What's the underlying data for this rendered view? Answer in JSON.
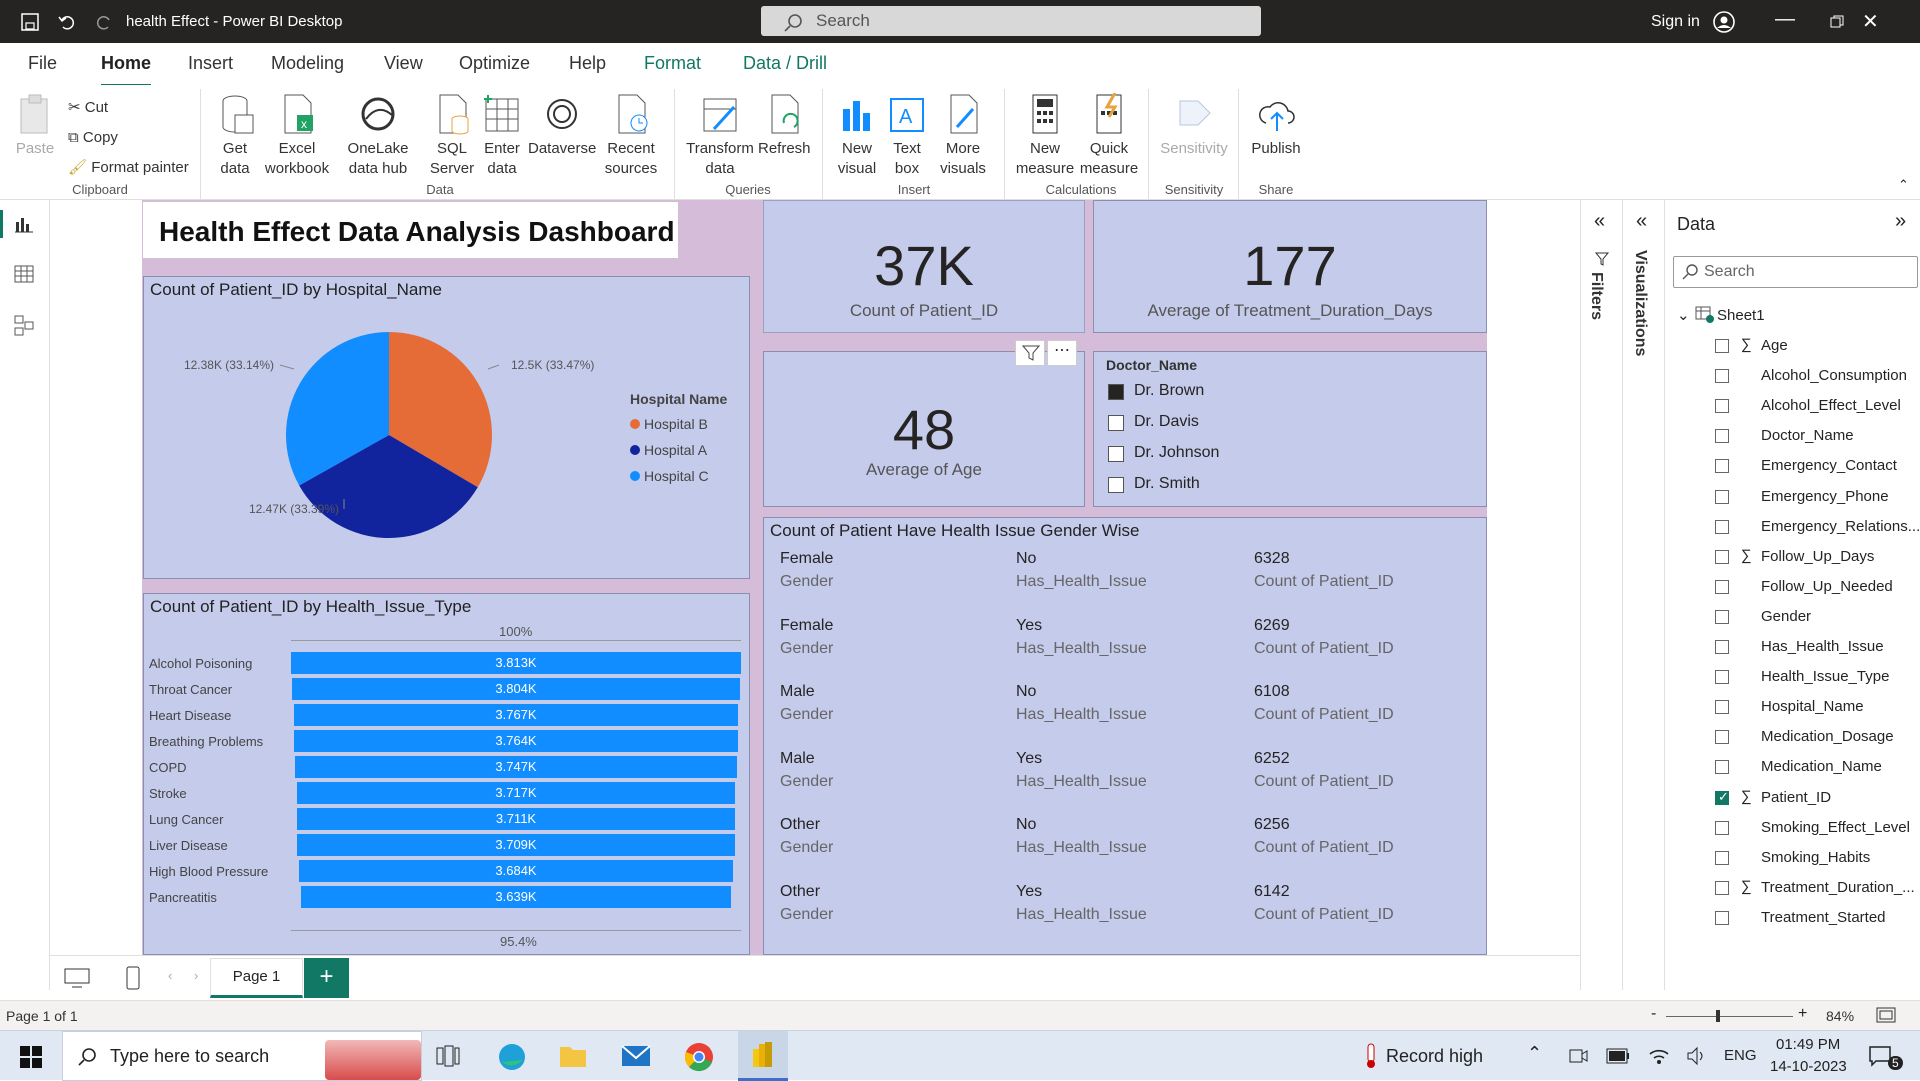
{
  "app": {
    "title": "health Effect - Power BI Desktop",
    "search_placeholder": "Search",
    "sign_in": "Sign in"
  },
  "menu": [
    "File",
    "Home",
    "Insert",
    "Modeling",
    "View",
    "Optimize",
    "Help",
    "Format",
    "Data / Drill"
  ],
  "ribbon": {
    "clipboard": {
      "paste": "Paste",
      "cut": "Cut",
      "copy": "Copy",
      "format_painter": "Format painter",
      "group": "Clipboard"
    },
    "data": {
      "get_data": "Get data",
      "excel": "Excel workbook",
      "onelake": "OneLake data hub",
      "sql": "SQL Server",
      "enter": "Enter data",
      "dataverse": "Dataverse",
      "recent": "Recent sources",
      "group": "Data"
    },
    "queries": {
      "transform": "Transform data",
      "refresh": "Refresh",
      "group": "Queries"
    },
    "insert": {
      "new_visual": "New visual",
      "text_box": "Text box",
      "more_visuals": "More visuals",
      "group": "Insert"
    },
    "calculations": {
      "new_measure": "New measure",
      "quick_measure": "Quick measure",
      "group": "Calculations"
    },
    "sensitivity": {
      "label": "Sensitivity",
      "group": "Sensitivity"
    },
    "share": {
      "publish": "Publish",
      "group": "Share"
    }
  },
  "report": {
    "title": "Health Effect Data Analysis Dashboard",
    "pie": {
      "title": "Count of Patient_ID by Hospital_Name",
      "legend_title": "Hospital Name"
    },
    "bar": {
      "title": "Count of Patient_ID by Health_Issue_Type",
      "top_label": "100%",
      "bottom_label": "95.4%"
    },
    "card1": {
      "value": "37K",
      "label": "Count of Patient_ID"
    },
    "card2": {
      "value": "177",
      "label": "Average of Treatment_Duration_Days"
    },
    "card3": {
      "value": "48",
      "label": "Average of Age"
    },
    "slicer": {
      "title": "Doctor_Name",
      "items": [
        {
          "label": "Dr. Brown",
          "checked": true
        },
        {
          "label": "Dr. Davis",
          "checked": false
        },
        {
          "label": "Dr. Johnson",
          "checked": false
        },
        {
          "label": "Dr. Smith",
          "checked": false
        }
      ]
    },
    "multirow": {
      "title": "Count of Patient Have Health Issue Gender Wise",
      "rows": [
        {
          "gender": "Female",
          "issue": "No",
          "count": "6328"
        },
        {
          "gender": "Female",
          "issue": "Yes",
          "count": "6269"
        },
        {
          "gender": "Male",
          "issue": "No",
          "count": "6108"
        },
        {
          "gender": "Male",
          "issue": "Yes",
          "count": "6252"
        },
        {
          "gender": "Other",
          "issue": "No",
          "count": "6256"
        },
        {
          "gender": "Other",
          "issue": "Yes",
          "count": "6142"
        }
      ],
      "labels": {
        "gender": "Gender",
        "issue": "Has_Health_Issue",
        "count": "Count of Patient_ID"
      }
    }
  },
  "chart_data": [
    {
      "type": "pie",
      "title": "Count of Patient_ID by Hospital_Name",
      "slices": [
        {
          "name": "Hospital B",
          "value": 12500,
          "label": "12.5K (33.47%)",
          "color": "#e66c37"
        },
        {
          "name": "Hospital A",
          "value": 12470,
          "label": "12.47K (33.39%)",
          "color": "#12239e"
        },
        {
          "name": "Hospital C",
          "value": 12380,
          "label": "12.38K (33.14%)",
          "color": "#118dff"
        }
      ]
    },
    {
      "type": "bar",
      "title": "Count of Patient_ID by Health_Issue_Type",
      "categories": [
        "Alcohol Poisoning",
        "Throat Cancer",
        "Heart Disease",
        "Breathing Problems",
        "COPD",
        "Stroke",
        "Lung Cancer",
        "Liver Disease",
        "High Blood Pressure",
        "Pancreatitis"
      ],
      "values": [
        3813,
        3804,
        3767,
        3764,
        3747,
        3717,
        3711,
        3709,
        3684,
        3639
      ],
      "labels": [
        "3.813K",
        "3.804K",
        "3.767K",
        "3.764K",
        "3.747K",
        "3.717K",
        "3.711K",
        "3.709K",
        "3.684K",
        "3.639K"
      ],
      "color": "#118dff"
    }
  ],
  "filters_label": "Filters",
  "viz_label": "Visualizations",
  "data_pane": {
    "title": "Data",
    "search_placeholder": "Search",
    "table": "Sheet1",
    "fields": [
      {
        "name": "Age",
        "sigma": true,
        "checked": false
      },
      {
        "name": "Alcohol_Consumption",
        "sigma": false,
        "checked": false
      },
      {
        "name": "Alcohol_Effect_Level",
        "sigma": false,
        "checked": false
      },
      {
        "name": "Doctor_Name",
        "sigma": false,
        "checked": false
      },
      {
        "name": "Emergency_Contact",
        "sigma": false,
        "checked": false
      },
      {
        "name": "Emergency_Phone",
        "sigma": false,
        "checked": false
      },
      {
        "name": "Emergency_Relations...",
        "sigma": false,
        "checked": false
      },
      {
        "name": "Follow_Up_Days",
        "sigma": true,
        "checked": false
      },
      {
        "name": "Follow_Up_Needed",
        "sigma": false,
        "checked": false
      },
      {
        "name": "Gender",
        "sigma": false,
        "checked": false
      },
      {
        "name": "Has_Health_Issue",
        "sigma": false,
        "checked": false
      },
      {
        "name": "Health_Issue_Type",
        "sigma": false,
        "checked": false
      },
      {
        "name": "Hospital_Name",
        "sigma": false,
        "checked": false
      },
      {
        "name": "Medication_Dosage",
        "sigma": false,
        "checked": false
      },
      {
        "name": "Medication_Name",
        "sigma": false,
        "checked": false
      },
      {
        "name": "Patient_ID",
        "sigma": true,
        "checked": true
      },
      {
        "name": "Smoking_Effect_Level",
        "sigma": false,
        "checked": false
      },
      {
        "name": "Smoking_Habits",
        "sigma": false,
        "checked": false
      },
      {
        "name": "Treatment_Duration_...",
        "sigma": true,
        "checked": false
      },
      {
        "name": "Treatment_Started",
        "sigma": false,
        "checked": false
      }
    ]
  },
  "page_tab": "Page 1",
  "status": {
    "page": "Page 1 of 1",
    "zoom": "84%"
  },
  "taskbar": {
    "search": "Type here to search",
    "record": "Record high",
    "lang": "ENG",
    "time": "01:49 PM",
    "date": "14-10-2023",
    "notif": "5"
  }
}
